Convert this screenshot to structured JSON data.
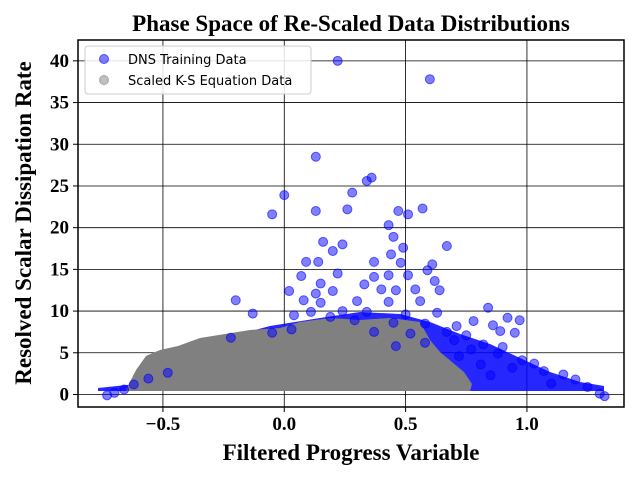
{
  "chart_data": {
    "type": "scatter",
    "title": "Phase Space of Re-Scaled Data Distributions",
    "xlabel": "Filtered Progress Variable",
    "ylabel": "Resolved Scalar Dissipation Rate",
    "xlim": [
      -0.85,
      1.4
    ],
    "ylim": [
      -1.5,
      42.5
    ],
    "xticks": [
      -0.5,
      0.0,
      0.5,
      1.0
    ],
    "xtick_labels": [
      "−0.5",
      "0.0",
      "0.5",
      "1.0"
    ],
    "yticks": [
      0,
      5,
      10,
      15,
      20,
      25,
      30,
      35,
      40
    ],
    "ytick_labels": [
      "0",
      "5",
      "10",
      "15",
      "20",
      "25",
      "30",
      "35",
      "40"
    ],
    "grid": true,
    "legend_position": "upper-left",
    "series": [
      {
        "name": "DNS Training Data",
        "color": "#0000ff",
        "alpha": 0.5,
        "points": [
          [
            0.22,
            40.0
          ],
          [
            0.6,
            37.8
          ],
          [
            0.13,
            28.5
          ],
          [
            0.36,
            26.0
          ],
          [
            0.34,
            25.6
          ],
          [
            0.28,
            24.2
          ],
          [
            0.0,
            23.9
          ],
          [
            0.26,
            22.2
          ],
          [
            0.57,
            22.3
          ],
          [
            0.13,
            22.0
          ],
          [
            0.47,
            22.0
          ],
          [
            0.51,
            21.6
          ],
          [
            -0.05,
            21.6
          ],
          [
            0.43,
            20.3
          ],
          [
            0.45,
            18.9
          ],
          [
            0.16,
            18.3
          ],
          [
            0.24,
            18.0
          ],
          [
            0.49,
            17.6
          ],
          [
            0.67,
            17.8
          ],
          [
            0.2,
            17.2
          ],
          [
            0.44,
            16.8
          ],
          [
            0.61,
            15.6
          ],
          [
            0.09,
            15.9
          ],
          [
            0.14,
            15.9
          ],
          [
            0.37,
            15.9
          ],
          [
            0.48,
            15.8
          ],
          [
            0.59,
            14.9
          ],
          [
            0.07,
            14.2
          ],
          [
            0.22,
            14.5
          ],
          [
            0.37,
            14.1
          ],
          [
            0.43,
            14.3
          ],
          [
            0.51,
            14.3
          ],
          [
            0.62,
            13.6
          ],
          [
            0.15,
            13.3
          ],
          [
            0.33,
            13.2
          ],
          [
            0.46,
            12.5
          ],
          [
            0.02,
            12.4
          ],
          [
            0.13,
            12.1
          ],
          [
            0.2,
            12.4
          ],
          [
            0.4,
            12.6
          ],
          [
            0.54,
            12.6
          ],
          [
            0.64,
            12.5
          ],
          [
            -0.2,
            11.3
          ],
          [
            0.08,
            11.3
          ],
          [
            0.15,
            11.0
          ],
          [
            0.3,
            11.2
          ],
          [
            0.43,
            11.1
          ],
          [
            0.56,
            11.2
          ],
          [
            0.84,
            10.4
          ],
          [
            0.11,
            9.9
          ],
          [
            0.24,
            10.0
          ],
          [
            0.34,
            9.9
          ],
          [
            0.5,
            9.6
          ],
          [
            0.63,
            9.8
          ],
          [
            0.92,
            9.2
          ],
          [
            -0.13,
            9.7
          ],
          [
            0.04,
            9.5
          ],
          [
            0.19,
            9.3
          ],
          [
            0.78,
            8.8
          ],
          [
            0.97,
            8.9
          ],
          [
            0.29,
            8.9
          ],
          [
            0.45,
            8.6
          ],
          [
            0.58,
            8.5
          ],
          [
            0.71,
            8.2
          ],
          [
            0.86,
            8.3
          ],
          [
            0.95,
            7.4
          ],
          [
            0.89,
            7.6
          ],
          [
            0.67,
            7.5
          ],
          [
            0.03,
            7.8
          ],
          [
            -0.05,
            7.4
          ],
          [
            0.37,
            7.5
          ],
          [
            0.52,
            7.3
          ],
          [
            0.75,
            7.1
          ],
          [
            -0.22,
            6.8
          ],
          [
            0.82,
            6.0
          ],
          [
            0.9,
            5.7
          ],
          [
            0.88,
            4.9
          ],
          [
            0.98,
            4.1
          ],
          [
            1.03,
            3.7
          ],
          [
            0.94,
            3.2
          ],
          [
            1.07,
            2.8
          ],
          [
            1.15,
            2.4
          ],
          [
            1.2,
            1.8
          ],
          [
            0.72,
            4.6
          ],
          [
            0.81,
            3.6
          ],
          [
            1.1,
            1.3
          ],
          [
            0.58,
            6.2
          ],
          [
            0.46,
            5.8
          ],
          [
            -0.48,
            2.6
          ],
          [
            -0.56,
            1.9
          ],
          [
            -0.62,
            1.2
          ],
          [
            -0.66,
            0.6
          ],
          [
            -0.7,
            0.2
          ],
          [
            -0.73,
            -0.1
          ],
          [
            1.25,
            0.9
          ],
          [
            1.3,
            0.1
          ],
          [
            1.32,
            -0.2
          ],
          [
            0.7,
            6.5
          ],
          [
            0.77,
            5.4
          ],
          [
            0.85,
            2.3
          ]
        ]
      },
      {
        "name": "Scaled K-S Equation Data",
        "color": "#808080",
        "alpha": 0.5,
        "points": []
      }
    ]
  }
}
